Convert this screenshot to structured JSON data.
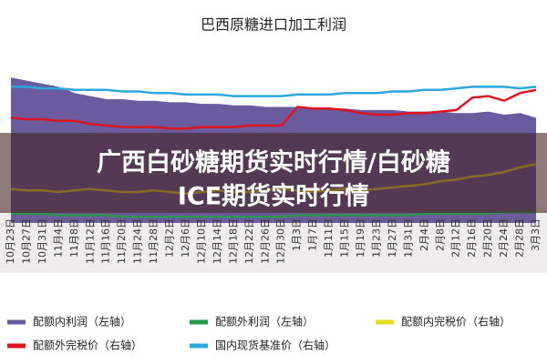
{
  "chart_data": {
    "type": "line",
    "title": "巴西原糖进口加工利润",
    "categories": [
      "10月23日",
      "10月27日",
      "10月31日",
      "11月4日",
      "11月8日",
      "11月12日",
      "11月16日",
      "11月20日",
      "11月24日",
      "11月28日",
      "12月2日",
      "12月6日",
      "12月10日",
      "12月14日",
      "12月18日",
      "12月22日",
      "12月26日",
      "12月30日",
      "1月3日",
      "1月7日",
      "1月11日",
      "1月15日",
      "1月19日",
      "1月23日",
      "1月27日",
      "1月31日",
      "2月4日",
      "2月8日",
      "2月12日",
      "2月16日",
      "2月20日",
      "2月24日",
      "2月28日",
      "3月3日"
    ],
    "ylim": [
      0,
      100
    ],
    "series": [
      {
        "name": "配额内利润（左轴）",
        "color": "#6a5a9e",
        "fill": true,
        "values": [
          94,
          92,
          90,
          88,
          84,
          82,
          80,
          80,
          79,
          79,
          78,
          78,
          77,
          77,
          76,
          76,
          75,
          75,
          75,
          74,
          74,
          74,
          73,
          73,
          73,
          72,
          72,
          72,
          71,
          71,
          72,
          70,
          71,
          68
        ]
      },
      {
        "name": "配额外利润（左轴）",
        "color": "#1f9a4a",
        "values": [
          6,
          6,
          6,
          5,
          5,
          5,
          5,
          4,
          4,
          4,
          4,
          4,
          4,
          4,
          4,
          4,
          4,
          4,
          5,
          5,
          5,
          5,
          5,
          5,
          5,
          5,
          6,
          6,
          6,
          6,
          6,
          7,
          7,
          7
        ]
      },
      {
        "name": "配额内完税价（右轴）",
        "color": "#e8dc20",
        "values": [
          22,
          21,
          21,
          20,
          21,
          22,
          21,
          20,
          20,
          21,
          20,
          19,
          20,
          21,
          20,
          20,
          21,
          22,
          21,
          20,
          21,
          22,
          21,
          22,
          23,
          24,
          25,
          27,
          28,
          30,
          31,
          33,
          36,
          38
        ]
      },
      {
        "name": "配额外完税价（右轴）",
        "color": "#e0141e",
        "values": [
          68,
          67,
          67,
          66,
          66,
          64,
          63,
          62,
          62,
          62,
          61,
          61,
          62,
          62,
          62,
          63,
          63,
          63,
          75,
          74,
          74,
          73,
          71,
          70,
          70,
          71,
          71,
          72,
          73,
          81,
          82,
          79,
          84,
          86
        ]
      },
      {
        "name": "国内现货基准价（右轴）",
        "color": "#2aa8e0",
        "values": [
          88,
          88,
          87,
          87,
          86,
          86,
          86,
          85,
          85,
          84,
          84,
          83,
          83,
          83,
          82,
          82,
          82,
          82,
          83,
          83,
          83,
          84,
          84,
          84,
          85,
          85,
          86,
          86,
          87,
          88,
          88,
          88,
          87,
          88
        ]
      }
    ]
  },
  "banner": {
    "lines": [
      "广西白砂糖期货实时行情/白砂糖",
      "ICE期货实时行情"
    ]
  }
}
